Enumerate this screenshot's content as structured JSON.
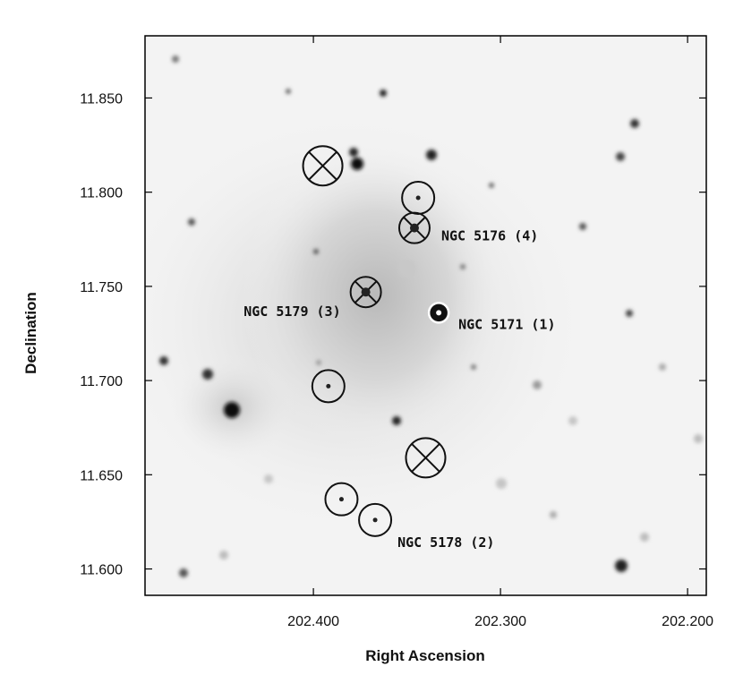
{
  "chart_data": {
    "type": "scatter",
    "title": "",
    "xlabel": "Right Ascension",
    "ylabel": "Declination",
    "xlim": [
      202.49,
      202.19
    ],
    "ylim": [
      11.586,
      11.883
    ],
    "x_inverted": true,
    "xticks": [
      "202.400",
      "202.300",
      "202.200"
    ],
    "xtick_values": [
      202.4,
      202.3,
      202.2
    ],
    "yticks": [
      "11.850",
      "11.800",
      "11.750",
      "11.700",
      "11.650",
      "11.600"
    ],
    "ytick_values": [
      11.85,
      11.8,
      11.75,
      11.7,
      11.65,
      11.6
    ],
    "background": "greyscale optical image of galaxy group field",
    "grid": false,
    "markers": [
      {
        "ra": 202.395,
        "dec": 11.814,
        "marker": "circle-cross"
      },
      {
        "ra": 202.344,
        "dec": 11.797,
        "marker": "circle"
      },
      {
        "ra": 202.346,
        "dec": 11.781,
        "marker": "circle-cross",
        "label": "NGC 5176 (4)"
      },
      {
        "ra": 202.372,
        "dec": 11.747,
        "marker": "circle-cross",
        "label": "NGC 5179 (3)"
      },
      {
        "ra": 202.333,
        "dec": 11.736,
        "marker": "circle-white",
        "label": "NGC 5171 (1)"
      },
      {
        "ra": 202.392,
        "dec": 11.697,
        "marker": "circle"
      },
      {
        "ra": 202.34,
        "dec": 11.659,
        "marker": "circle-cross"
      },
      {
        "ra": 202.385,
        "dec": 11.637,
        "marker": "circle"
      },
      {
        "ra": 202.367,
        "dec": 11.626,
        "marker": "circle",
        "label": "NGC 5178 (2)"
      }
    ]
  }
}
